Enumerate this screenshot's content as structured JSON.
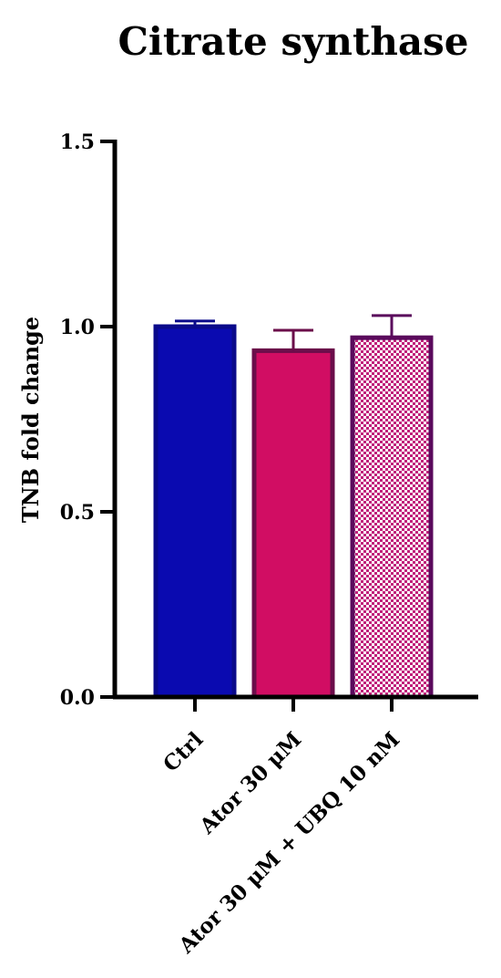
{
  "chart_data": {
    "type": "bar",
    "title": "Citrate synthase",
    "xlabel": "",
    "ylabel": "TNB fold change",
    "ylim": [
      0,
      1.5
    ],
    "yticks": [
      0.0,
      0.5,
      1.0,
      1.5
    ],
    "ytick_labels": [
      "0.0",
      "0.5",
      "1.0",
      "1.5"
    ],
    "categories": [
      "Ctrl",
      "Ator 30 μM",
      "Ator 30 μM + UBQ 10 nM"
    ],
    "values": [
      1.0,
      0.935,
      0.97
    ],
    "errors": [
      0.015,
      0.055,
      0.06
    ],
    "fill_colors": [
      "#0a0ab0",
      "#d10d63",
      "pattern"
    ],
    "edge_colors": [
      "#0a0a8a",
      "#6b0d4a",
      "#5a0a5c"
    ],
    "pattern_colors": {
      "background": "#ffffff",
      "dots": "#c0207a"
    },
    "grid": false,
    "legend": "none"
  }
}
